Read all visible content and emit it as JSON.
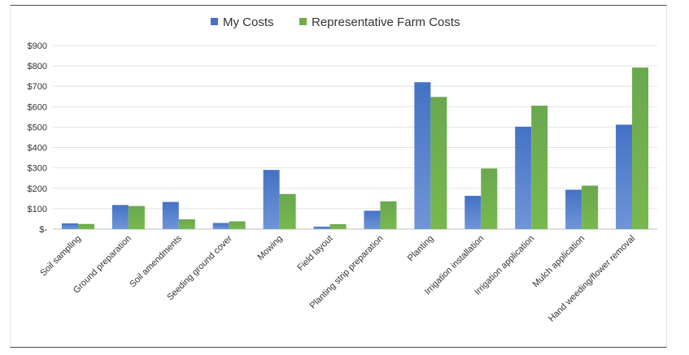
{
  "chart_data": {
    "type": "bar",
    "categories": [
      "Soil sampling",
      "Ground preparation",
      "Soil amendments",
      "Seeding ground cover",
      "Mowing",
      "Field layout",
      "Planting strip preparation",
      "Planting",
      "Irrigation installation",
      "Irrigation application",
      "Mulch application",
      "Hand weeding/flower removal"
    ],
    "series": [
      {
        "name": "My Costs",
        "color": "#4472c4",
        "values": [
          28,
          118,
          133,
          30,
          290,
          12,
          90,
          720,
          163,
          502,
          193,
          512
        ]
      },
      {
        "name": "Representative Farm Costs",
        "color": "#70ad47",
        "values": [
          25,
          113,
          48,
          38,
          172,
          24,
          136,
          648,
          297,
          605,
          213,
          792
        ]
      }
    ],
    "ylim": [
      0,
      900
    ],
    "yticks": [
      0,
      100,
      200,
      300,
      400,
      500,
      600,
      700,
      800,
      900
    ],
    "ytick_labels": [
      "$-",
      "$100",
      "$200",
      "$300",
      "$400",
      "$500",
      "$600",
      "$700",
      "$800",
      "$900"
    ],
    "grid": true,
    "legend_position": "top"
  }
}
